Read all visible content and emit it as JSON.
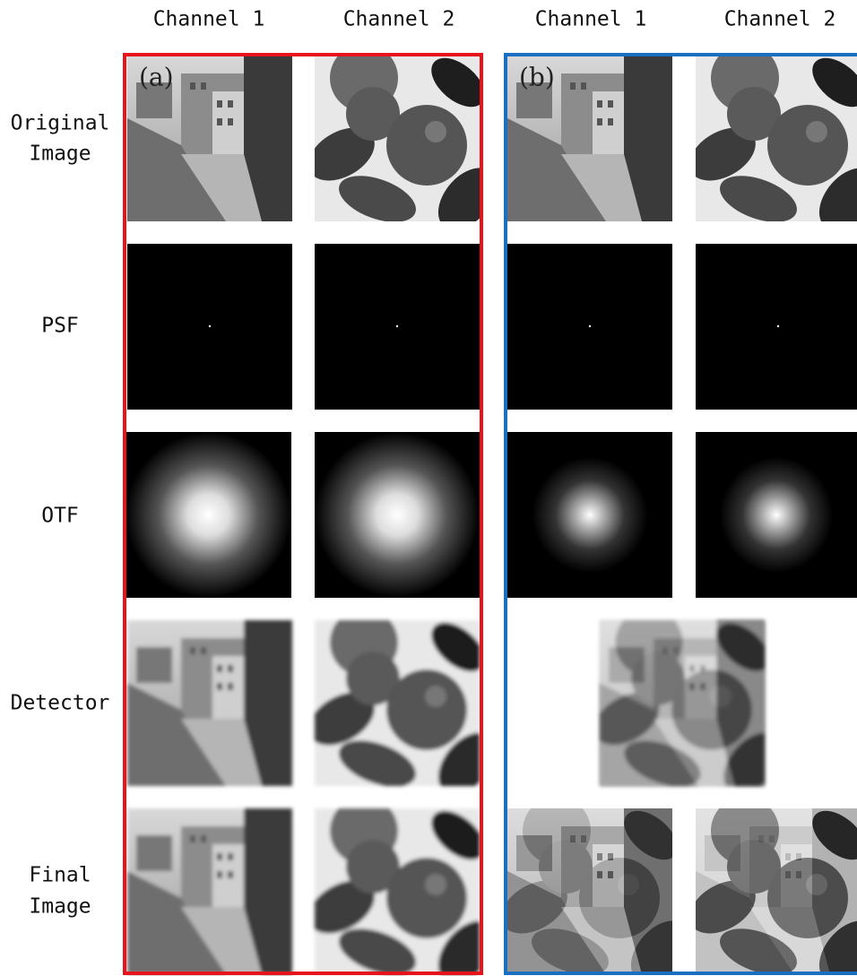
{
  "column_headers": [
    "Channel 1",
    "Channel 2",
    "Channel 1",
    "Channel 2"
  ],
  "row_labels": [
    [
      "Original",
      "Image"
    ],
    [
      "PSF"
    ],
    [
      "OTF"
    ],
    [
      "Detector"
    ],
    [
      "Final",
      "Image"
    ]
  ],
  "panel_labels": [
    "(a)",
    "(b)"
  ]
}
